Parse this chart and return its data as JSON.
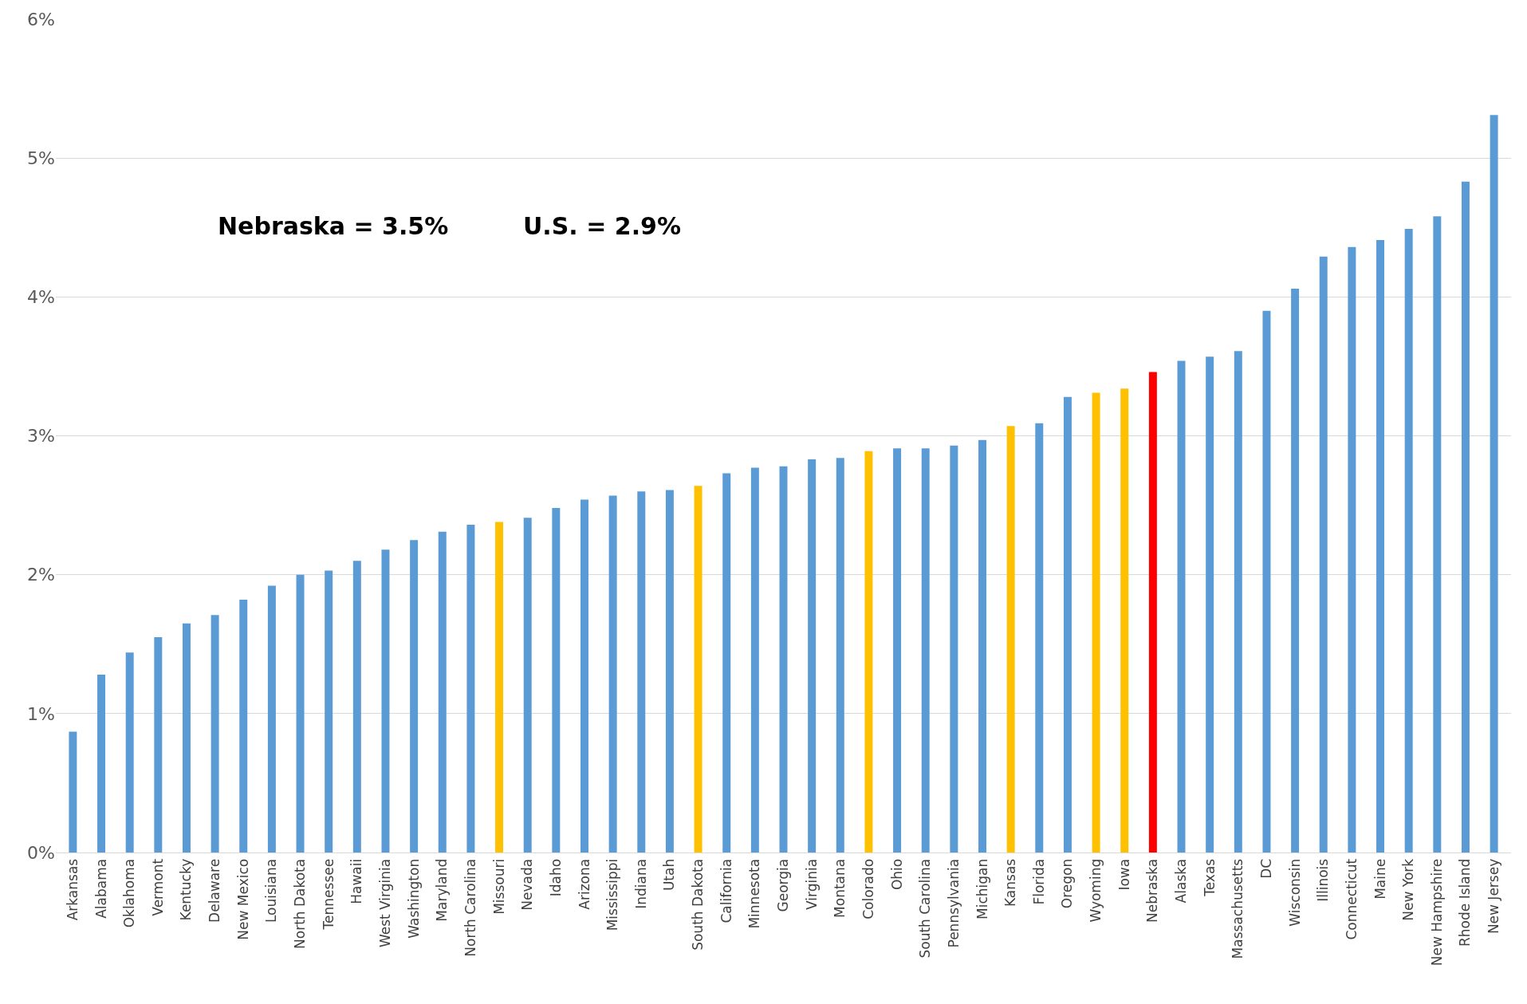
{
  "chart_data": {
    "type": "bar",
    "categories": [
      "Arkansas",
      "Alabama",
      "Oklahoma",
      "Vermont",
      "Kentucky",
      "Delaware",
      "New Mexico",
      "Louisiana",
      "North Dakota",
      "Tennessee",
      "Hawaii",
      "West Virginia",
      "Washington",
      "Maryland",
      "North Carolina",
      "Missouri",
      "Nevada",
      "Idaho",
      "Arizona",
      "Mississippi",
      "Indiana",
      "Utah",
      "South Dakota",
      "California",
      "Minnesota",
      "Georgia",
      "Virginia",
      "Montana",
      "Colorado",
      "Ohio",
      "South Carolina",
      "Pennsylvania",
      "Michigan",
      "Kansas",
      "Florida",
      "Oregon",
      "Wyoming",
      "Iowa",
      "Nebraska",
      "Alaska",
      "Texas",
      "Massachusetts",
      "DC",
      "Wisconsin",
      "Illinois",
      "Connecticut",
      "Maine",
      "New York",
      "New Hampshire",
      "Rhode Island",
      "New Jersey"
    ],
    "values": [
      0.87,
      1.28,
      1.44,
      1.55,
      1.65,
      1.71,
      1.82,
      1.92,
      2.0,
      2.03,
      2.1,
      2.18,
      2.25,
      2.31,
      2.36,
      2.38,
      2.41,
      2.48,
      2.54,
      2.57,
      2.6,
      2.61,
      2.64,
      2.73,
      2.77,
      2.78,
      2.83,
      2.84,
      2.89,
      2.91,
      2.91,
      2.93,
      2.97,
      3.07,
      3.09,
      3.28,
      3.31,
      3.34,
      3.46,
      3.54,
      3.57,
      3.61,
      3.9,
      4.06,
      4.29,
      4.36,
      4.41,
      4.49,
      4.58,
      4.83,
      5.31
    ],
    "colors": [
      "#5b9bd5",
      "#5b9bd5",
      "#5b9bd5",
      "#5b9bd5",
      "#5b9bd5",
      "#5b9bd5",
      "#5b9bd5",
      "#5b9bd5",
      "#5b9bd5",
      "#5b9bd5",
      "#5b9bd5",
      "#5b9bd5",
      "#5b9bd5",
      "#5b9bd5",
      "#5b9bd5",
      "#ffc000",
      "#5b9bd5",
      "#5b9bd5",
      "#5b9bd5",
      "#5b9bd5",
      "#5b9bd5",
      "#5b9bd5",
      "#ffc000",
      "#5b9bd5",
      "#5b9bd5",
      "#5b9bd5",
      "#5b9bd5",
      "#5b9bd5",
      "#ffc000",
      "#5b9bd5",
      "#5b9bd5",
      "#5b9bd5",
      "#5b9bd5",
      "#ffc000",
      "#5b9bd5",
      "#5b9bd5",
      "#ffc000",
      "#ffc000",
      "#ff0000",
      "#5b9bd5",
      "#5b9bd5",
      "#5b9bd5",
      "#5b9bd5",
      "#5b9bd5",
      "#5b9bd5",
      "#5b9bd5",
      "#5b9bd5",
      "#5b9bd5",
      "#5b9bd5",
      "#5b9bd5",
      "#5b9bd5"
    ],
    "ylim": [
      0,
      6
    ],
    "yticks": [
      {
        "value": 0,
        "label": "0%"
      },
      {
        "value": 1,
        "label": "1%"
      },
      {
        "value": 2,
        "label": "2%"
      },
      {
        "value": 3,
        "label": "3%"
      },
      {
        "value": 4,
        "label": "4%"
      },
      {
        "value": 5,
        "label": "5%"
      },
      {
        "value": 6,
        "label": "6%"
      }
    ],
    "grid": "y",
    "legend": false,
    "annotations": [
      "Nebraska = 3.5%",
      "U.S. = 2.9%"
    ]
  }
}
